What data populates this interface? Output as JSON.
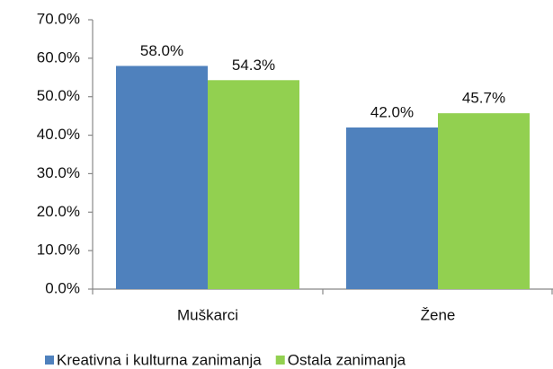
{
  "chart_data": {
    "type": "bar",
    "categories": [
      "Muškarci",
      "Žene"
    ],
    "series": [
      {
        "name": "Kreativna i kulturna zanimanja",
        "color": "#4f81bd",
        "values": [
          58.0,
          42.0
        ],
        "value_labels": [
          "58.0%",
          "42.0%"
        ]
      },
      {
        "name": "Ostala zanimanja",
        "color": "#92d050",
        "values": [
          54.3,
          45.7
        ],
        "value_labels": [
          "54.3%",
          "45.7%"
        ]
      }
    ],
    "ylim": [
      0,
      70
    ],
    "yticks": [
      {
        "value": 0,
        "label": "0.0%"
      },
      {
        "value": 10,
        "label": "10.0%"
      },
      {
        "value": 20,
        "label": "20.0%"
      },
      {
        "value": 30,
        "label": "30.0%"
      },
      {
        "value": 40,
        "label": "40.0%"
      },
      {
        "value": 50,
        "label": "50.0%"
      },
      {
        "value": 60,
        "label": "60.0%"
      },
      {
        "value": 70,
        "label": "70.0%"
      }
    ],
    "legend": "bottom"
  }
}
